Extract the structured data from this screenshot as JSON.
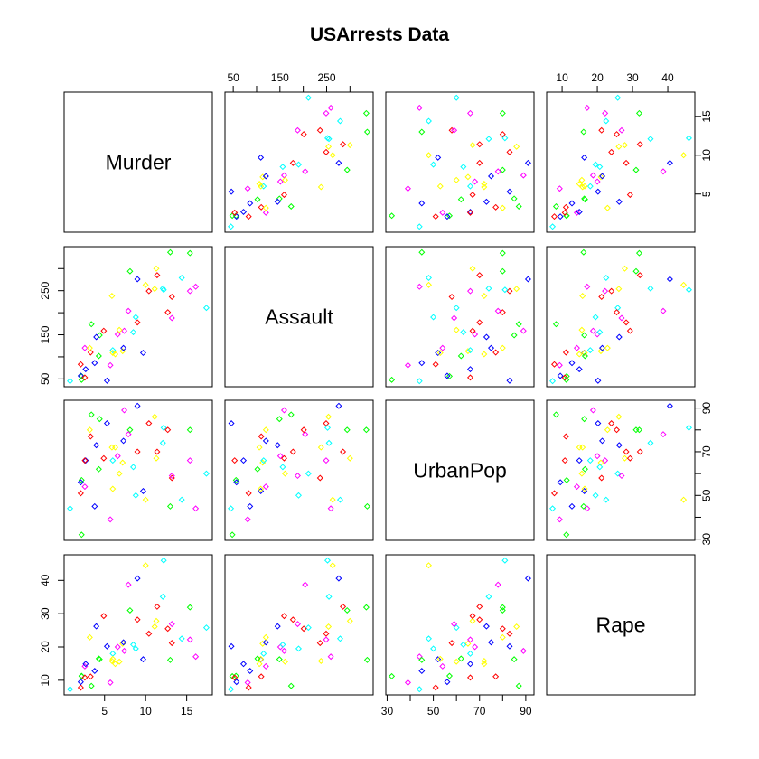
{
  "chart_data": {
    "type": "scatter",
    "title": "USArrests Data",
    "variables": [
      "Murder",
      "Assault",
      "UrbanPop",
      "Rape"
    ],
    "axes": {
      "Murder": {
        "range": [
          0.8,
          17.4
        ],
        "ticks": [
          5,
          10,
          15
        ]
      },
      "Assault": {
        "range": [
          45,
          337
        ],
        "ticks": [
          50,
          100,
          150,
          200,
          250,
          300
        ],
        "tick_labels": [
          "50",
          "",
          "150",
          "",
          "250",
          ""
        ]
      },
      "UrbanPop": {
        "range": [
          32,
          91
        ],
        "ticks": [
          30,
          40,
          50,
          60,
          70,
          80,
          90
        ],
        "tick_labels": [
          "30",
          "",
          "50",
          "",
          "70",
          "",
          "90"
        ]
      },
      "Rape": {
        "range": [
          7.3,
          46
        ],
        "ticks": [
          10,
          20,
          30,
          40
        ]
      }
    },
    "marker": "open-diamond",
    "point_colors": [
      "#ff0000",
      "#ffff00",
      "#00ff00",
      "#00ffff",
      "#0000ff",
      "#ff00ff"
    ],
    "columns": [
      "Murder",
      "Assault",
      "UrbanPop",
      "Rape"
    ],
    "rows": [
      [
        13.2,
        236,
        58,
        21.2
      ],
      [
        10.0,
        263,
        48,
        44.5
      ],
      [
        8.1,
        294,
        80,
        31.0
      ],
      [
        8.8,
        190,
        50,
        19.5
      ],
      [
        9.0,
        276,
        91,
        40.6
      ],
      [
        7.9,
        204,
        78,
        38.7
      ],
      [
        3.3,
        110,
        77,
        11.1
      ],
      [
        5.9,
        238,
        72,
        15.8
      ],
      [
        15.4,
        335,
        80,
        31.9
      ],
      [
        17.4,
        211,
        60,
        25.8
      ],
      [
        5.3,
        46,
        83,
        20.2
      ],
      [
        2.6,
        120,
        54,
        14.2
      ],
      [
        10.4,
        249,
        83,
        24.0
      ],
      [
        7.2,
        113,
        65,
        21.0
      ],
      [
        2.2,
        56,
        57,
        11.3
      ],
      [
        6.0,
        115,
        66,
        18.0
      ],
      [
        9.7,
        109,
        52,
        16.3
      ],
      [
        15.4,
        249,
        66,
        22.2
      ],
      [
        2.1,
        83,
        51,
        7.8
      ],
      [
        11.3,
        300,
        67,
        27.8
      ],
      [
        4.4,
        149,
        85,
        16.3
      ],
      [
        12.1,
        255,
        74,
        35.1
      ],
      [
        2.7,
        72,
        66,
        14.9
      ],
      [
        16.1,
        259,
        44,
        17.1
      ],
      [
        9.0,
        178,
        70,
        28.2
      ],
      [
        6.0,
        109,
        53,
        16.4
      ],
      [
        4.3,
        102,
        62,
        16.5
      ],
      [
        12.2,
        252,
        81,
        46.0
      ],
      [
        2.1,
        57,
        56,
        9.5
      ],
      [
        7.4,
        159,
        89,
        18.8
      ],
      [
        11.4,
        285,
        70,
        32.1
      ],
      [
        11.1,
        254,
        86,
        26.1
      ],
      [
        13.0,
        337,
        45,
        16.1
      ],
      [
        0.8,
        45,
        44,
        7.3
      ],
      [
        7.3,
        120,
        75,
        21.4
      ],
      [
        6.6,
        151,
        68,
        20.0
      ],
      [
        4.9,
        159,
        67,
        29.3
      ],
      [
        6.3,
        106,
        72,
        14.9
      ],
      [
        3.4,
        174,
        87,
        8.3
      ],
      [
        14.4,
        279,
        48,
        22.5
      ],
      [
        3.8,
        86,
        45,
        12.8
      ],
      [
        13.2,
        188,
        59,
        26.9
      ],
      [
        12.7,
        201,
        80,
        25.5
      ],
      [
        3.2,
        120,
        80,
        22.9
      ],
      [
        2.2,
        48,
        32,
        11.2
      ],
      [
        8.5,
        156,
        63,
        20.7
      ],
      [
        4.0,
        145,
        73,
        26.2
      ],
      [
        5.7,
        81,
        39,
        9.3
      ],
      [
        2.6,
        53,
        66,
        10.8
      ],
      [
        6.8,
        161,
        60,
        15.6
      ]
    ]
  }
}
